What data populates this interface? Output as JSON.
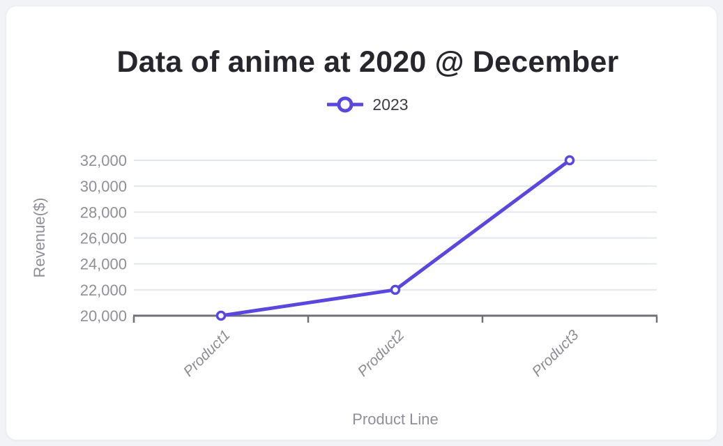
{
  "page": {
    "background": "#f2f3f6",
    "card_background": "#ffffff"
  },
  "chart_data": {
    "type": "line",
    "title": "Data of anime at 2020 @ December",
    "xlabel": "Product Line",
    "ylabel": "Revenue($)",
    "categories": [
      "Product1",
      "Product2",
      "Product3"
    ],
    "series": [
      {
        "name": "2023",
        "values": [
          20000,
          22000,
          32000
        ]
      }
    ],
    "ylim": [
      20000,
      32000
    ],
    "yticks": [
      20000,
      22000,
      24000,
      26000,
      28000,
      30000,
      32000
    ],
    "ytick_labels": [
      "20,000",
      "22,000",
      "24,000",
      "26,000",
      "28,000",
      "30,000",
      "32,000"
    ],
    "grid": true,
    "legend_position": "top-center",
    "marker": "hollow-circle",
    "colors": {
      "series": "#5a47dd",
      "grid": "#e4e7f0",
      "axis": "#70707a",
      "y_tick_text": "#8f8f98",
      "x_tick_text": "#8c8c94",
      "axis_title_text": "#8f8f98",
      "title_text": "#26262c",
      "legend_text": "#3c3c44"
    }
  }
}
